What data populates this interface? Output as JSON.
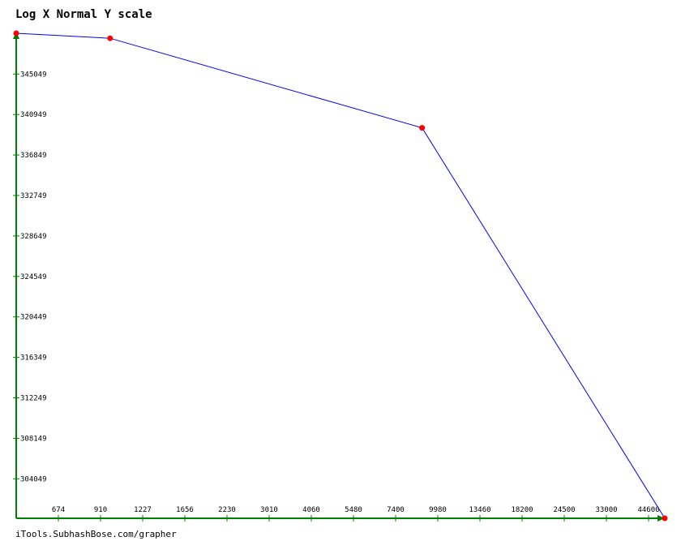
{
  "title": "Log X Normal Y scale",
  "footer": "iTools.SubhashBose.com/grapher",
  "colors": {
    "axis": "#008000",
    "line": "#0000ff",
    "point": "#ff0000"
  },
  "chart_data": {
    "type": "line",
    "title": "Log X Normal Y scale",
    "xlabel": "",
    "ylabel": "",
    "x_scale": "log",
    "y_scale": "linear",
    "x_ticks": [
      "674",
      "910",
      "1227",
      "1656",
      "2230",
      "3010",
      "4060",
      "5480",
      "7400",
      "9980",
      "13460",
      "18200",
      "24500",
      "33000",
      "44600"
    ],
    "y_ticks": [
      "345049",
      "340949",
      "336849",
      "332749",
      "328649",
      "324549",
      "320449",
      "316349",
      "312249",
      "308149",
      "304049"
    ],
    "xlim": [
      500,
      60000
    ],
    "ylim": [
      301000,
      349200
    ],
    "series": [
      {
        "points": [
          {
            "x": 500,
            "y": 349200
          },
          {
            "x": 1000,
            "y": 348700
          },
          {
            "x": 10000,
            "y": 339800
          },
          {
            "x": 60000,
            "y": 301000
          }
        ]
      }
    ]
  }
}
